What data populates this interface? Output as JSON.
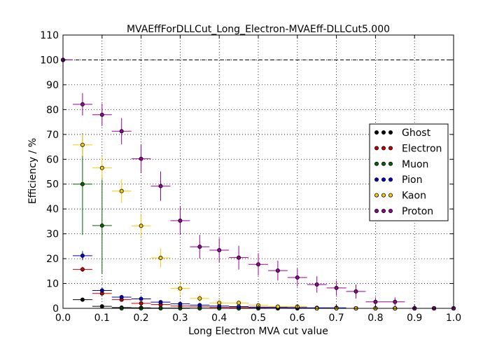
{
  "chart_data": {
    "type": "scatter",
    "title": "MVAEffForDLLCut_Long_Electron-MVAEff-DLLCut5.000",
    "xlabel": "Long Electron MVA cut value",
    "ylabel": "Efficiency / %",
    "xlim": [
      0.0,
      1.0
    ],
    "ylim": [
      0,
      110
    ],
    "xticks": [
      "0.0",
      "0.1",
      "0.2",
      "0.3",
      "0.4",
      "0.5",
      "0.6",
      "0.7",
      "0.8",
      "0.9",
      "1.0"
    ],
    "yticks": [
      "0",
      "10",
      "20",
      "30",
      "40",
      "50",
      "60",
      "70",
      "80",
      "90",
      "100",
      "110"
    ],
    "grid": true,
    "legend_position": "right",
    "reference_line_y": 100,
    "x_bin_half_width": 0.025,
    "series": [
      {
        "name": "Ghost",
        "color": "#000000",
        "points": [
          {
            "x": 0.0,
            "y": 100,
            "err": 0
          },
          {
            "x": 0.05,
            "y": 3.5,
            "err": 0.5
          },
          {
            "x": 0.1,
            "y": 0.8,
            "err": 0.3
          },
          {
            "x": 0.15,
            "y": 0.3,
            "err": 0.2
          },
          {
            "x": 0.2,
            "y": 0.2,
            "err": 0.1
          },
          {
            "x": 0.25,
            "y": 0.1,
            "err": 0.1
          },
          {
            "x": 0.3,
            "y": 0.1,
            "err": 0.1
          },
          {
            "x": 0.35,
            "y": 0.0,
            "err": 0
          },
          {
            "x": 0.4,
            "y": 0.0,
            "err": 0
          },
          {
            "x": 0.45,
            "y": 0.0,
            "err": 0
          },
          {
            "x": 0.5,
            "y": 0.0,
            "err": 0
          },
          {
            "x": 0.55,
            "y": 0.0,
            "err": 0
          },
          {
            "x": 0.6,
            "y": 0.0,
            "err": 0
          },
          {
            "x": 0.65,
            "y": 0.0,
            "err": 0
          },
          {
            "x": 0.7,
            "y": 0.0,
            "err": 0
          },
          {
            "x": 0.75,
            "y": 0.0,
            "err": 0
          },
          {
            "x": 0.8,
            "y": 0.0,
            "err": 0
          },
          {
            "x": 0.85,
            "y": 0.0,
            "err": 0
          },
          {
            "x": 0.9,
            "y": 0.0,
            "err": 0
          },
          {
            "x": 0.95,
            "y": 0.0,
            "err": 0
          },
          {
            "x": 1.0,
            "y": 0.0,
            "err": 0
          }
        ]
      },
      {
        "name": "Electron",
        "color": "#cc0000",
        "points": [
          {
            "x": 0.0,
            "y": 100,
            "err": 0
          },
          {
            "x": 0.05,
            "y": 15.7,
            "err": 1.0
          },
          {
            "x": 0.1,
            "y": 6.0,
            "err": 0.7
          },
          {
            "x": 0.15,
            "y": 3.5,
            "err": 0.5
          },
          {
            "x": 0.2,
            "y": 2.0,
            "err": 0.4
          },
          {
            "x": 0.25,
            "y": 1.5,
            "err": 0.3
          },
          {
            "x": 0.3,
            "y": 0.9,
            "err": 0.3
          },
          {
            "x": 0.35,
            "y": 0.6,
            "err": 0.2
          },
          {
            "x": 0.4,
            "y": 0.4,
            "err": 0.2
          },
          {
            "x": 0.45,
            "y": 0.3,
            "err": 0.1
          },
          {
            "x": 0.5,
            "y": 0.2,
            "err": 0.1
          },
          {
            "x": 0.55,
            "y": 0.1,
            "err": 0.1
          },
          {
            "x": 0.6,
            "y": 0.1,
            "err": 0.1
          },
          {
            "x": 0.65,
            "y": 0.0,
            "err": 0
          },
          {
            "x": 0.7,
            "y": 0.0,
            "err": 0
          },
          {
            "x": 0.75,
            "y": 0.0,
            "err": 0
          },
          {
            "x": 0.8,
            "y": 0.0,
            "err": 0
          },
          {
            "x": 0.85,
            "y": 0.0,
            "err": 0
          },
          {
            "x": 0.9,
            "y": 0.0,
            "err": 0
          },
          {
            "x": 0.95,
            "y": 0.0,
            "err": 0
          },
          {
            "x": 1.0,
            "y": 0.0,
            "err": 0
          }
        ]
      },
      {
        "name": "Muon",
        "color": "#006600",
        "points": [
          {
            "x": 0.0,
            "y": 100,
            "err": 0
          },
          {
            "x": 0.05,
            "y": 50.0,
            "err": 20.5
          },
          {
            "x": 0.1,
            "y": 33.3,
            "err": 19.3
          },
          {
            "x": 0.15,
            "y": 0.0,
            "err": 0
          },
          {
            "x": 0.2,
            "y": 0.0,
            "err": 0
          },
          {
            "x": 0.25,
            "y": 0.0,
            "err": 0
          },
          {
            "x": 0.3,
            "y": 0.0,
            "err": 0
          },
          {
            "x": 0.35,
            "y": 0.0,
            "err": 0
          },
          {
            "x": 0.4,
            "y": 0.0,
            "err": 0
          },
          {
            "x": 0.45,
            "y": 0.0,
            "err": 0
          },
          {
            "x": 0.5,
            "y": 0.0,
            "err": 0
          },
          {
            "x": 0.55,
            "y": 0.0,
            "err": 0
          },
          {
            "x": 0.6,
            "y": 0.0,
            "err": 0
          },
          {
            "x": 0.65,
            "y": 0.0,
            "err": 0
          },
          {
            "x": 0.7,
            "y": 0.0,
            "err": 0
          },
          {
            "x": 0.75,
            "y": 0.0,
            "err": 0
          },
          {
            "x": 0.8,
            "y": 0.0,
            "err": 0
          },
          {
            "x": 0.85,
            "y": 0.0,
            "err": 0
          },
          {
            "x": 0.9,
            "y": 0.0,
            "err": 0
          },
          {
            "x": 0.95,
            "y": 0.0,
            "err": 0
          },
          {
            "x": 1.0,
            "y": 0.0,
            "err": 0
          }
        ]
      },
      {
        "name": "Pion",
        "color": "#0000cc",
        "points": [
          {
            "x": 0.0,
            "y": 100,
            "err": 0
          },
          {
            "x": 0.05,
            "y": 21.2,
            "err": 1.8
          },
          {
            "x": 0.1,
            "y": 7.2,
            "err": 1.0
          },
          {
            "x": 0.15,
            "y": 4.5,
            "err": 0.8
          },
          {
            "x": 0.2,
            "y": 3.8,
            "err": 0.7
          },
          {
            "x": 0.25,
            "y": 2.5,
            "err": 0.6
          },
          {
            "x": 0.3,
            "y": 1.8,
            "err": 0.5
          },
          {
            "x": 0.35,
            "y": 1.3,
            "err": 0.4
          },
          {
            "x": 0.4,
            "y": 0.9,
            "err": 0.3
          },
          {
            "x": 0.45,
            "y": 0.7,
            "err": 0.3
          },
          {
            "x": 0.5,
            "y": 0.5,
            "err": 0.2
          },
          {
            "x": 0.55,
            "y": 0.4,
            "err": 0.2
          },
          {
            "x": 0.6,
            "y": 0.3,
            "err": 0.2
          },
          {
            "x": 0.65,
            "y": 0.2,
            "err": 0.1
          },
          {
            "x": 0.7,
            "y": 0.2,
            "err": 0.1
          },
          {
            "x": 0.75,
            "y": 0.0,
            "err": 0
          },
          {
            "x": 0.8,
            "y": 0.0,
            "err": 0
          },
          {
            "x": 0.85,
            "y": 0.0,
            "err": 0
          },
          {
            "x": 0.9,
            "y": 0.0,
            "err": 0
          },
          {
            "x": 0.95,
            "y": 0.0,
            "err": 0
          },
          {
            "x": 1.0,
            "y": 0.0,
            "err": 0
          }
        ]
      },
      {
        "name": "Kaon",
        "color": "#ffcc00",
        "points": [
          {
            "x": 0.0,
            "y": 100,
            "err": 0
          },
          {
            "x": 0.05,
            "y": 65.8,
            "err": 4.5
          },
          {
            "x": 0.1,
            "y": 56.5,
            "err": 4.8
          },
          {
            "x": 0.15,
            "y": 47.2,
            "err": 4.8
          },
          {
            "x": 0.2,
            "y": 33.2,
            "err": 4.5
          },
          {
            "x": 0.25,
            "y": 20.3,
            "err": 3.8
          },
          {
            "x": 0.3,
            "y": 8.0,
            "err": 2.5
          },
          {
            "x": 0.35,
            "y": 4.0,
            "err": 1.5
          },
          {
            "x": 0.4,
            "y": 2.2,
            "err": 1.2
          },
          {
            "x": 0.45,
            "y": 2.2,
            "err": 1.2
          },
          {
            "x": 0.5,
            "y": 1.2,
            "err": 0.8
          },
          {
            "x": 0.55,
            "y": 0.7,
            "err": 0.5
          },
          {
            "x": 0.6,
            "y": 0.7,
            "err": 0.5
          },
          {
            "x": 0.65,
            "y": 0.0,
            "err": 0
          },
          {
            "x": 0.7,
            "y": 0.0,
            "err": 0
          },
          {
            "x": 0.75,
            "y": 0.0,
            "err": 0
          },
          {
            "x": 0.8,
            "y": 0.0,
            "err": 0
          },
          {
            "x": 0.85,
            "y": 0.0,
            "err": 0
          },
          {
            "x": 0.9,
            "y": 0.0,
            "err": 0
          },
          {
            "x": 0.95,
            "y": 0.0,
            "err": 0
          },
          {
            "x": 1.0,
            "y": 0.0,
            "err": 0
          }
        ]
      },
      {
        "name": "Proton",
        "color": "#990099",
        "points": [
          {
            "x": 0.0,
            "y": 100,
            "err": 0
          },
          {
            "x": 0.05,
            "y": 82.1,
            "err": 4.5
          },
          {
            "x": 0.1,
            "y": 77.9,
            "err": 4.5
          },
          {
            "x": 0.15,
            "y": 71.3,
            "err": 5.3
          },
          {
            "x": 0.2,
            "y": 60.2,
            "err": 5.7
          },
          {
            "x": 0.25,
            "y": 49.2,
            "err": 5.9
          },
          {
            "x": 0.3,
            "y": 35.3,
            "err": 5.7
          },
          {
            "x": 0.35,
            "y": 24.8,
            "err": 4.8
          },
          {
            "x": 0.4,
            "y": 23.4,
            "err": 4.8
          },
          {
            "x": 0.45,
            "y": 20.4,
            "err": 4.8
          },
          {
            "x": 0.5,
            "y": 17.7,
            "err": 4.5
          },
          {
            "x": 0.55,
            "y": 15.2,
            "err": 4.0
          },
          {
            "x": 0.6,
            "y": 12.4,
            "err": 3.6
          },
          {
            "x": 0.65,
            "y": 9.6,
            "err": 3.3
          },
          {
            "x": 0.7,
            "y": 8.2,
            "err": 3.0
          },
          {
            "x": 0.75,
            "y": 6.8,
            "err": 2.8
          },
          {
            "x": 0.8,
            "y": 2.6,
            "err": 1.8
          },
          {
            "x": 0.85,
            "y": 2.6,
            "err": 1.8
          },
          {
            "x": 0.9,
            "y": 0.0,
            "err": 0
          },
          {
            "x": 0.95,
            "y": 0.0,
            "err": 0
          },
          {
            "x": 1.0,
            "y": 0.0,
            "err": 0
          }
        ]
      }
    ]
  }
}
